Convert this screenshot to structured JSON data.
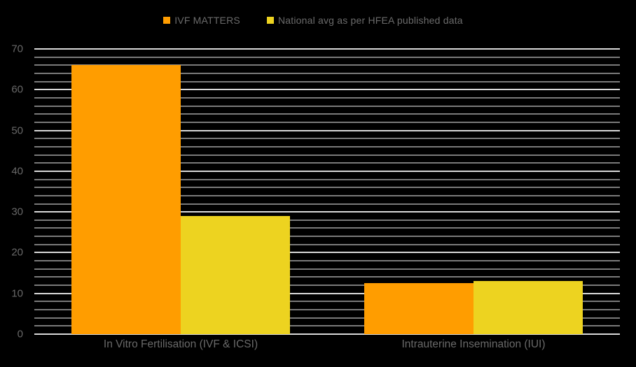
{
  "chart_data": {
    "type": "bar",
    "title": "",
    "xlabel": "",
    "ylabel": "",
    "categories": [
      "In Vitro Fertilisation (IVF & ICSI)",
      "Intrauterine Insemination (IUI)"
    ],
    "series": [
      {
        "name": "IVF MATTERS",
        "color": "#FF9D00",
        "values": [
          66,
          12.5
        ]
      },
      {
        "name": "National avg as per HFEA published data",
        "color": "#EDD320",
        "values": [
          29,
          13
        ]
      }
    ],
    "ylim": [
      0,
      70
    ],
    "yticks": [
      0,
      10,
      20,
      30,
      40,
      50,
      60,
      70
    ],
    "minor_gridline_step": 2,
    "major_gridline_step": 10,
    "grid": "on",
    "legend_position": "top"
  },
  "legend": {
    "items": [
      {
        "label": "IVF MATTERS",
        "color": "#FF9D00"
      },
      {
        "label": "National avg as per HFEA published data",
        "color": "#EDD320"
      }
    ]
  },
  "colors": {
    "background": "#000000",
    "text": "#696969",
    "major_gridline": "#D9D9D9",
    "minor_gridline": "#F4F4F4"
  }
}
